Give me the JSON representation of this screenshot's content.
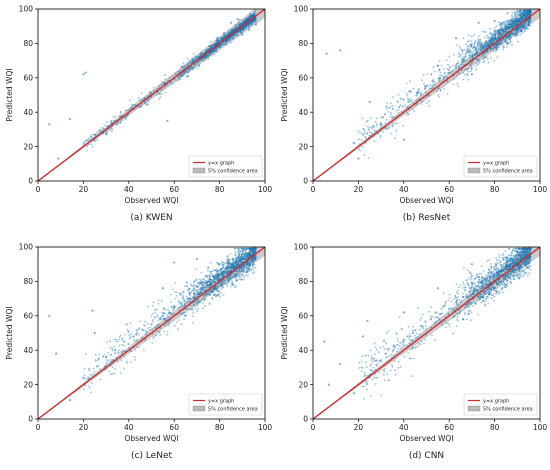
{
  "figure": {
    "colors": {
      "points": "#1f77b4",
      "identity_line": "#d62728",
      "confidence_band": "#9e9e9e"
    }
  },
  "chart_data": [
    {
      "type": "scatter",
      "caption": "(a) KWEN",
      "xlabel": "Observed WQI",
      "ylabel": "Predicted WQI",
      "xlim": [
        0,
        100
      ],
      "ylim": [
        0,
        100
      ],
      "xticks": [
        0,
        20,
        40,
        60,
        80,
        100
      ],
      "yticks": [
        0,
        20,
        40,
        60,
        80,
        100
      ],
      "legend": {
        "position": "lower-right",
        "entries": [
          "y=x graph",
          "5% confidence area"
        ]
      },
      "series": [
        {
          "name": "y=x graph",
          "kind": "line",
          "x": [
            0,
            100
          ],
          "y": [
            0,
            100
          ]
        },
        {
          "name": "5% confidence area",
          "kind": "band",
          "relative_width": 0.05
        },
        {
          "kind": "points",
          "x": [
            5,
            14,
            20,
            27,
            33,
            37,
            42,
            47,
            52,
            56,
            60,
            63,
            66,
            69,
            72,
            74,
            76,
            78,
            80,
            81,
            82,
            83,
            84,
            85,
            86,
            87,
            88,
            89,
            90,
            91,
            92,
            93,
            94,
            95,
            96,
            57,
            21,
            9,
            85,
            88,
            93,
            79,
            66,
            71,
            90,
            82
          ],
          "y": [
            33,
            36,
            62,
            27,
            33,
            37,
            42,
            48,
            52,
            57,
            60,
            63,
            66,
            70,
            72,
            75,
            77,
            79,
            80,
            82,
            83,
            84,
            85,
            86,
            86,
            88,
            89,
            90,
            90,
            91,
            92,
            92,
            93,
            93,
            91,
            35,
            63,
            13,
            92,
            94,
            88,
            83,
            61,
            67,
            85,
            86
          ]
        }
      ]
    },
    {
      "type": "scatter",
      "caption": "(b) ResNet",
      "xlabel": "Observed WQI",
      "ylabel": "Predicted WQI",
      "xlim": [
        0,
        100
      ],
      "ylim": [
        0,
        100
      ],
      "xticks": [
        0,
        20,
        40,
        60,
        80,
        100
      ],
      "yticks": [
        0,
        20,
        40,
        60,
        80,
        100
      ],
      "legend": {
        "position": "lower-right",
        "entries": [
          "y=x graph",
          "5% confidence area"
        ]
      },
      "series": [
        {
          "name": "y=x graph",
          "kind": "line",
          "x": [
            0,
            100
          ],
          "y": [
            0,
            100
          ]
        },
        {
          "name": "5% confidence area",
          "kind": "band",
          "relative_width": 0.05
        },
        {
          "kind": "points",
          "x": [
            6,
            12,
            18,
            22,
            25,
            30,
            35,
            38,
            42,
            46,
            50,
            53,
            56,
            60,
            63,
            66,
            69,
            72,
            74,
            76,
            78,
            80,
            81,
            82,
            83,
            84,
            85,
            86,
            87,
            88,
            89,
            90,
            91,
            92,
            93,
            94,
            95,
            40,
            35,
            63,
            20,
            55,
            73,
            86,
            90,
            80,
            70,
            93,
            84
          ],
          "y": [
            74,
            76,
            22,
            27,
            46,
            33,
            37,
            43,
            46,
            51,
            55,
            58,
            60,
            63,
            67,
            70,
            73,
            76,
            79,
            80,
            82,
            85,
            86,
            87,
            88,
            88,
            90,
            91,
            92,
            92,
            93,
            94,
            94,
            95,
            96,
            96,
            98,
            24,
            32,
            83,
            13,
            67,
            92,
            80,
            86,
            93,
            62,
            89,
            78
          ]
        }
      ]
    },
    {
      "type": "scatter",
      "caption": "(c) LeNet",
      "xlabel": "Observed WQI",
      "ylabel": "Predicted WQI",
      "xlim": [
        0,
        100
      ],
      "ylim": [
        0,
        100
      ],
      "xticks": [
        0,
        20,
        40,
        60,
        80,
        100
      ],
      "yticks": [
        0,
        20,
        40,
        60,
        80,
        100
      ],
      "legend": {
        "position": "lower-right",
        "entries": [
          "y=x graph",
          "5% confidence area"
        ]
      },
      "series": [
        {
          "name": "y=x graph",
          "kind": "line",
          "x": [
            0,
            100
          ],
          "y": [
            0,
            100
          ]
        },
        {
          "name": "5% confidence area",
          "kind": "band",
          "relative_width": 0.05
        },
        {
          "kind": "points",
          "x": [
            5,
            8,
            14,
            20,
            25,
            30,
            34,
            38,
            42,
            46,
            50,
            54,
            58,
            60,
            63,
            66,
            69,
            72,
            74,
            76,
            78,
            80,
            81,
            82,
            83,
            84,
            85,
            86,
            87,
            88,
            89,
            90,
            91,
            92,
            93,
            94,
            95,
            60,
            55,
            70,
            86,
            90,
            24,
            79,
            65,
            75,
            92
          ],
          "y": [
            60,
            38,
            11,
            24,
            50,
            36,
            40,
            45,
            48,
            52,
            55,
            58,
            62,
            65,
            67,
            70,
            73,
            76,
            79,
            81,
            83,
            84,
            85,
            86,
            87,
            88,
            89,
            90,
            91,
            91,
            92,
            93,
            93,
            94,
            95,
            95,
            96,
            91,
            76,
            93,
            78,
            84,
            63,
            72,
            60,
            88,
            86
          ]
        }
      ]
    },
    {
      "type": "scatter",
      "caption": "(d) CNN",
      "xlabel": "Observed WQI",
      "ylabel": "Predicted WQI",
      "xlim": [
        0,
        100
      ],
      "ylim": [
        0,
        100
      ],
      "xticks": [
        0,
        20,
        40,
        60,
        80,
        100
      ],
      "yticks": [
        0,
        20,
        40,
        60,
        80,
        100
      ],
      "legend": {
        "position": "lower-right",
        "entries": [
          "y=x graph",
          "5% confidence area"
        ]
      },
      "series": [
        {
          "name": "y=x graph",
          "kind": "line",
          "x": [
            0,
            100
          ],
          "y": [
            0,
            100
          ]
        },
        {
          "name": "5% confidence area",
          "kind": "band",
          "relative_width": 0.05
        },
        {
          "kind": "points",
          "x": [
            5,
            7,
            12,
            18,
            24,
            28,
            32,
            36,
            40,
            44,
            48,
            52,
            56,
            60,
            63,
            66,
            69,
            72,
            74,
            76,
            78,
            80,
            81,
            82,
            83,
            84,
            85,
            86,
            87,
            88,
            89,
            90,
            91,
            92,
            93,
            94,
            95,
            40,
            55,
            70,
            22,
            58,
            75,
            85,
            91,
            66
          ],
          "y": [
            45,
            20,
            32,
            15,
            57,
            34,
            38,
            42,
            46,
            50,
            54,
            58,
            61,
            64,
            68,
            71,
            74,
            77,
            79,
            81,
            83,
            84,
            85,
            86,
            86,
            87,
            88,
            89,
            90,
            91,
            91,
            92,
            92,
            93,
            94,
            94,
            95,
            62,
            76,
            90,
            48,
            66,
            71,
            78,
            82,
            58
          ]
        }
      ]
    }
  ]
}
